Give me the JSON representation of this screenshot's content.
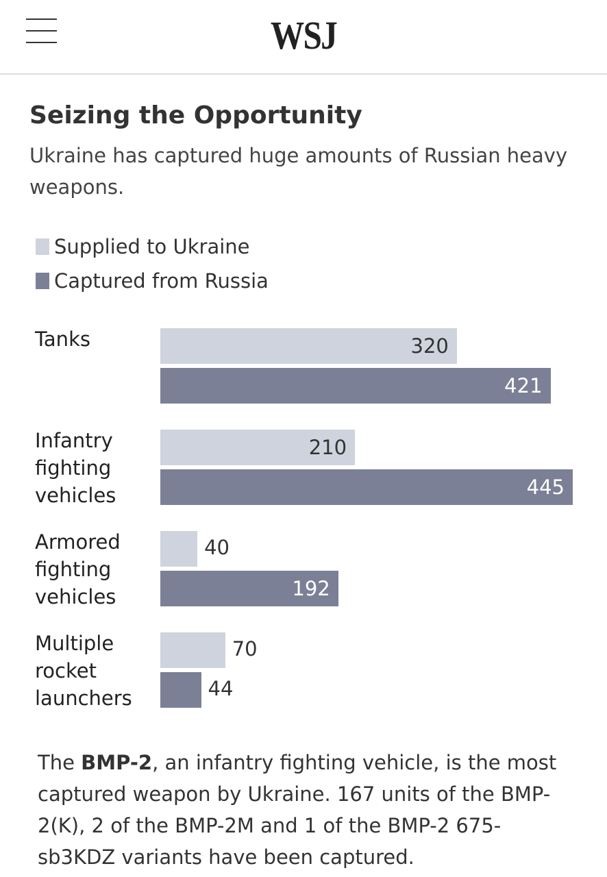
{
  "header": {
    "logo": "WSJ"
  },
  "chart_data": {
    "type": "bar",
    "orientation": "horizontal",
    "title": "Seizing the Opportunity",
    "subtitle": "Ukraine has captured huge amounts of Russian heavy weapons.",
    "categories": [
      "Tanks",
      "Infantry fighting vehicles",
      "Armored fighting vehicles",
      "Multiple rocket launchers"
    ],
    "series": [
      {
        "name": "Supplied to Ukraine",
        "color": "#cfd3dd",
        "values": [
          320,
          210,
          40,
          70
        ]
      },
      {
        "name": "Captured from Russia",
        "color": "#7c8096",
        "values": [
          421,
          445,
          192,
          44
        ]
      }
    ]
  },
  "note": [
    "The ",
    "BMP-2",
    ", an infantry fighting vehicle, is the most captured weapon by Ukraine. 167 units of the BMP-2(K), 2 of the BMP-2M and 1 of the BMP-2 675-sb3KDZ variants have been captured."
  ]
}
